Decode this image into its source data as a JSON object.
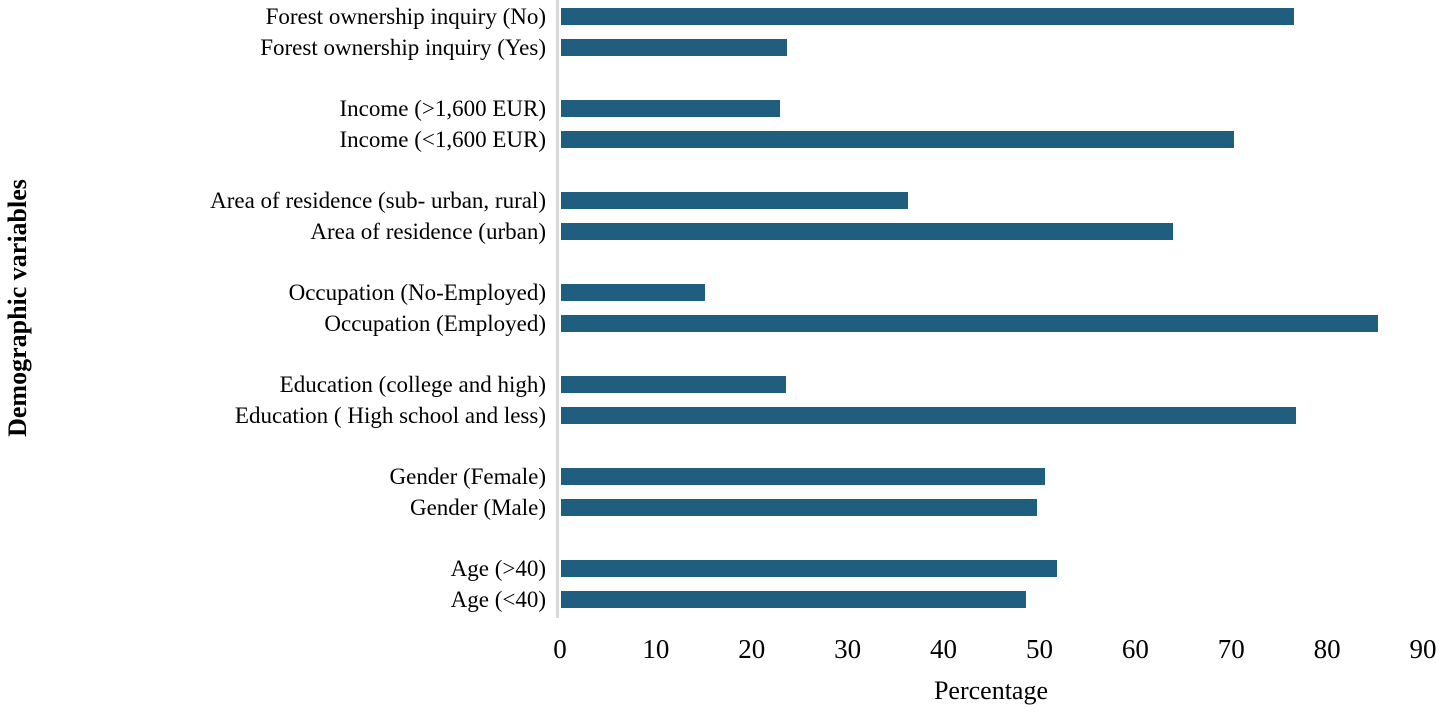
{
  "chart_data": {
    "type": "bar",
    "orientation": "horizontal",
    "title": "",
    "xlabel": "Percentage",
    "ylabel": "Demographic variables",
    "xlim": [
      0,
      90
    ],
    "xticks": [
      0,
      10,
      20,
      30,
      40,
      50,
      60,
      70,
      80,
      90
    ],
    "grid": false,
    "legend": false,
    "bar_color": "#1f5e7e",
    "axis_line_color": "#d9d9d9",
    "grouping": "pairs of bars per demographic variable, listed top to bottom",
    "categories": [
      "Forest ownership inquiry (No)",
      "Forest ownership inquiry (Yes)",
      "Income (>1,600 EUR)",
      "Income  (<1,600 EUR)",
      "Area of residence (sub- urban, rural)",
      "Area of residence (urban)",
      "Occupation (No-Employed)",
      "Occupation (Employed)",
      "Education (college and high)",
      "Education ( High school and less)",
      "Gender (Female)",
      "Gender (Male)",
      "Age  (>40)",
      "Age  (<40)"
    ],
    "values": [
      76.4,
      23.6,
      22.8,
      70.2,
      36.2,
      63.8,
      15.0,
      85.2,
      23.5,
      76.6,
      50.5,
      49.6,
      51.7,
      48.5
    ]
  }
}
